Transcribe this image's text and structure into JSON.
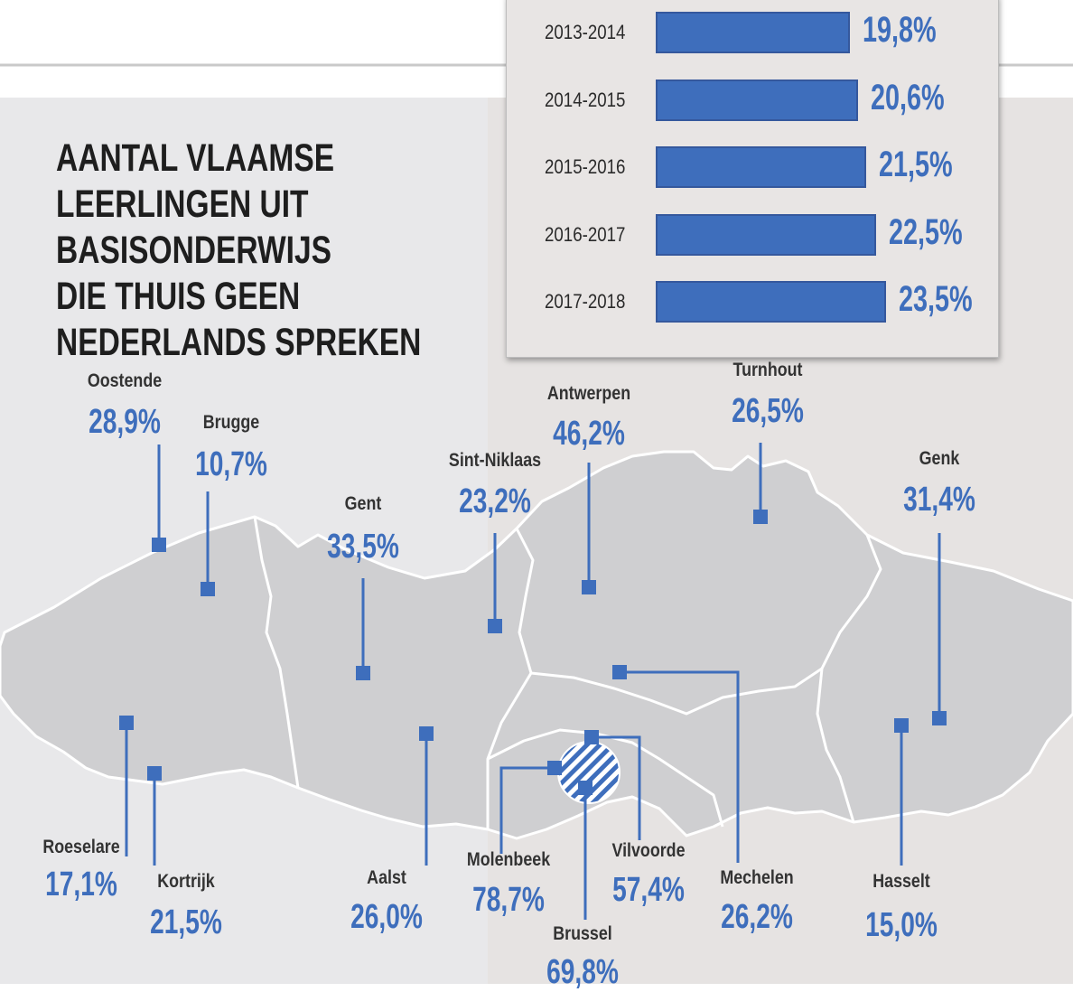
{
  "title": {
    "lines": [
      "AANTAL VLAAMSE",
      "LEERLINGEN UIT",
      "BASISONDERWIJS",
      "DIE  THUIS GEEN",
      "NEDERLANDS SPREKEN"
    ]
  },
  "colors": {
    "accent": "#3e6ebc",
    "map_fill": "#cfcfd1",
    "panel": "#e8e5e4"
  },
  "chart_data": {
    "type": "bar",
    "categories": [
      "2013-2014",
      "2014-2015",
      "2015-2016",
      "2016-2017",
      "2017-2018"
    ],
    "values": [
      19.8,
      20.6,
      21.5,
      22.5,
      23.5
    ],
    "value_labels": [
      "19,8%",
      "20,6%",
      "21,5%",
      "22,5%",
      "23,5%"
    ]
  },
  "cities": [
    {
      "name": "Oostende",
      "value": "28,9%"
    },
    {
      "name": "Brugge",
      "value": "10,7%"
    },
    {
      "name": "Gent",
      "value": "33,5%"
    },
    {
      "name": "Sint-Niklaas",
      "value": "23,2%"
    },
    {
      "name": "Antwerpen",
      "value": "46,2%"
    },
    {
      "name": "Turnhout",
      "value": "26,5%"
    },
    {
      "name": "Genk",
      "value": "31,4%"
    },
    {
      "name": "Roeselare",
      "value": "17,1%"
    },
    {
      "name": "Kortrijk",
      "value": "21,5%"
    },
    {
      "name": "Aalst",
      "value": "26,0%"
    },
    {
      "name": "Molenbeek",
      "value": "78,7%"
    },
    {
      "name": "Brussel",
      "value": "69,8%"
    },
    {
      "name": "Vilvoorde",
      "value": "57,4%"
    },
    {
      "name": "Mechelen",
      "value": "26,2%"
    },
    {
      "name": "Hasselt",
      "value": "15,0%"
    }
  ]
}
